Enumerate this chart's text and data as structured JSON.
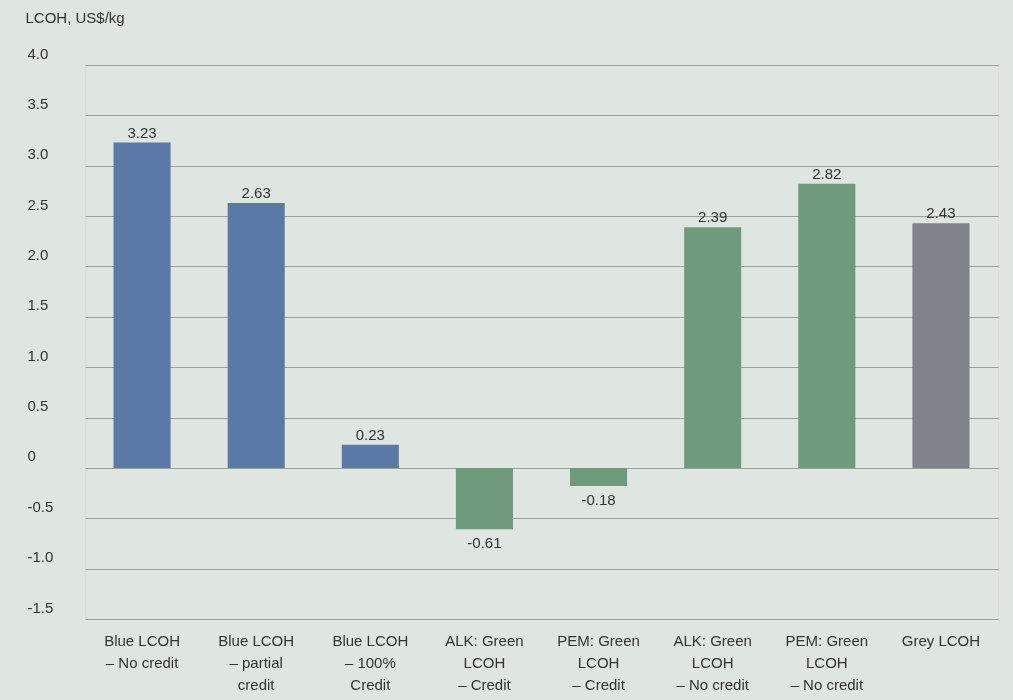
{
  "chart_data": {
    "type": "bar",
    "ylabel": "LCOH, US$/kg",
    "categories": [
      "Blue LCOH\n– No credit",
      "Blue LCOH\n– partial\ncredit",
      "Blue LCOH\n– 100%\nCredit",
      "ALK: Green\nLCOH\n– Credit",
      "PEM: Green\nLCOH\n– Credit",
      "ALK: Green\nLCOH\n– No credit",
      "PEM: Green\nLCOH\n– No credit",
      "Grey LCOH"
    ],
    "values": [
      3.23,
      2.63,
      0.23,
      -0.61,
      -0.18,
      2.39,
      2.82,
      2.43
    ],
    "colors": [
      "#5b79a7",
      "#5b79a7",
      "#5b79a7",
      "#6f9a7b",
      "#6f9a7b",
      "#6f9a7b",
      "#6f9a7b",
      "#80828c"
    ],
    "ylim": [
      -1.5,
      4.0
    ],
    "yticks": [
      {
        "value": 4.0,
        "label": "4.0"
      },
      {
        "value": 3.5,
        "label": "3.5"
      },
      {
        "value": 3.0,
        "label": "3.0"
      },
      {
        "value": 2.5,
        "label": "2.5"
      },
      {
        "value": 2.0,
        "label": "2.0"
      },
      {
        "value": 1.5,
        "label": "1.5"
      },
      {
        "value": 1.0,
        "label": "1.0"
      },
      {
        "value": 0.5,
        "label": "0.5"
      },
      0,
      {
        "value": -0.5,
        "label": "-0.5"
      },
      {
        "value": -1.0,
        "label": "-1.0"
      },
      {
        "value": -1.5,
        "label": "-1.5"
      }
    ],
    "grid": true,
    "data_labels": true
  }
}
